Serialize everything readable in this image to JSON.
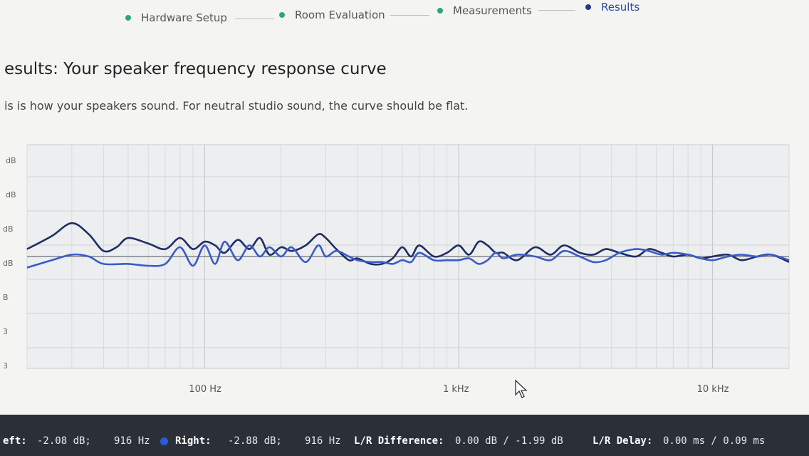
{
  "stepper": {
    "steps": [
      {
        "label": "Hardware Setup",
        "state": "done"
      },
      {
        "label": "Room Evaluation",
        "state": "done"
      },
      {
        "label": "Measurements",
        "state": "done"
      },
      {
        "label": "Results",
        "state": "active"
      }
    ],
    "done_color": "#2aa876",
    "active_color": "#1e3a8a"
  },
  "header": {
    "title": "esults: Your speaker frequency response curve",
    "subtitle": "is is how your speakers sound. For neutral studio sound, the curve should be flat."
  },
  "chart_data": {
    "type": "line",
    "x_scale": "log",
    "xlim": [
      20,
      20000
    ],
    "x_tick_labels": [
      "100 Hz",
      "1 kHz",
      "10 kHz"
    ],
    "y_tick_labels": [
      "dB",
      "dB",
      "dB",
      "dB",
      "B",
      "3",
      "3"
    ],
    "grid": true,
    "series": [
      {
        "color": "#1f2d63",
        "x": [
          20,
          25,
          30,
          35,
          40,
          45,
          50,
          60,
          70,
          80,
          90,
          100,
          110,
          120,
          135,
          150,
          165,
          180,
          200,
          220,
          250,
          280,
          300,
          330,
          370,
          400,
          450,
          500,
          550,
          600,
          650,
          700,
          800,
          900,
          1000,
          1100,
          1200,
          1300,
          1400,
          1500,
          1700,
          2000,
          2300,
          2600,
          3000,
          3400,
          3800,
          4300,
          5000,
          5600,
          6300,
          7000,
          8000,
          9000,
          10000,
          11500,
          13000,
          15000,
          17000,
          20000
        ],
        "y": [
          2.0,
          5.5,
          9.0,
          6.0,
          1.5,
          2.5,
          5.0,
          3.5,
          2.0,
          5.0,
          2.0,
          4.0,
          3.0,
          1.0,
          4.5,
          2.0,
          5.0,
          0.5,
          2.5,
          1.5,
          3.0,
          6.0,
          5.0,
          2.0,
          -1.0,
          -0.5,
          -2.0,
          -2.0,
          -0.5,
          2.5,
          0.0,
          3.0,
          0.0,
          1.0,
          3.0,
          0.5,
          4.0,
          3.0,
          1.0,
          1.0,
          -1.0,
          2.5,
          0.5,
          3.0,
          1.0,
          0.5,
          2.0,
          1.0,
          0.0,
          2.0,
          1.0,
          0.0,
          0.5,
          -0.5,
          0.0,
          0.5,
          -1.0,
          0.0,
          0.5,
          -1.5
        ]
      },
      {
        "color": "#3a5bc7",
        "x": [
          20,
          25,
          30,
          35,
          40,
          50,
          60,
          70,
          80,
          90,
          100,
          110,
          120,
          135,
          150,
          165,
          180,
          200,
          220,
          250,
          280,
          300,
          330,
          370,
          400,
          450,
          500,
          550,
          600,
          650,
          700,
          800,
          900,
          1000,
          1100,
          1200,
          1300,
          1400,
          1500,
          1700,
          2000,
          2300,
          2600,
          3000,
          3400,
          3800,
          4300,
          5000,
          5600,
          6300,
          7000,
          8000,
          9000,
          10000,
          11500,
          13000,
          15000,
          17000,
          20000
        ],
        "y": [
          -3.0,
          -1.0,
          0.5,
          0.0,
          -2.0,
          -2.0,
          -2.5,
          -2.0,
          2.5,
          -2.5,
          3.0,
          -2.0,
          4.0,
          -1.0,
          3.0,
          0.0,
          2.5,
          0.0,
          2.5,
          -1.5,
          3.0,
          0.0,
          1.5,
          0.0,
          -1.0,
          -1.5,
          -1.5,
          -2.0,
          -1.0,
          -1.5,
          1.0,
          -1.0,
          -1.0,
          -1.0,
          -0.5,
          -2.0,
          -1.0,
          1.0,
          -0.5,
          0.5,
          0.0,
          -1.0,
          1.5,
          0.0,
          -1.5,
          -1.0,
          1.0,
          2.0,
          1.5,
          0.5,
          1.0,
          0.5,
          -0.5,
          -1.0,
          0.0,
          0.5,
          0.0,
          0.5,
          -1.0
        ]
      }
    ]
  },
  "status_bar": {
    "left_key": "eft:",
    "left_value": "-2.08 dB;",
    "left_freq": "916 Hz",
    "right_key": "Right:",
    "right_value": "-2.88 dB;",
    "right_freq": "916 Hz",
    "diff_key": "L/R Difference:",
    "diff_value": "0.00 dB / -1.99 dB",
    "delay_key": "L/R Delay:",
    "delay_value": "0.00 ms / 0.09 ms",
    "right_dot_color": "#2d5bd8"
  }
}
